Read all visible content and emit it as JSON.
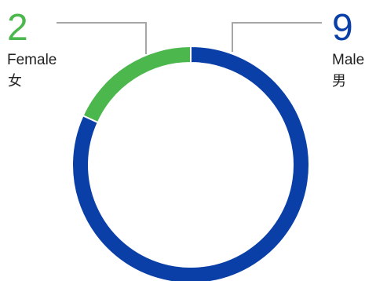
{
  "chart_data": {
    "type": "pie",
    "donut": true,
    "segments": [
      {
        "key": "male",
        "value": 9,
        "label": "Male",
        "label_cn": "男",
        "color": "#0a3fa8"
      },
      {
        "key": "female",
        "value": 2,
        "label": "Female",
        "label_cn": "女",
        "color": "#4cb74d"
      }
    ],
    "start": "top",
    "direction": "clockwise",
    "separator_color": "#ffffff"
  },
  "male": {
    "count": "9",
    "label": "Male",
    "label_cn": "男"
  },
  "female": {
    "count": "2",
    "label": "Female",
    "label_cn": "女"
  }
}
